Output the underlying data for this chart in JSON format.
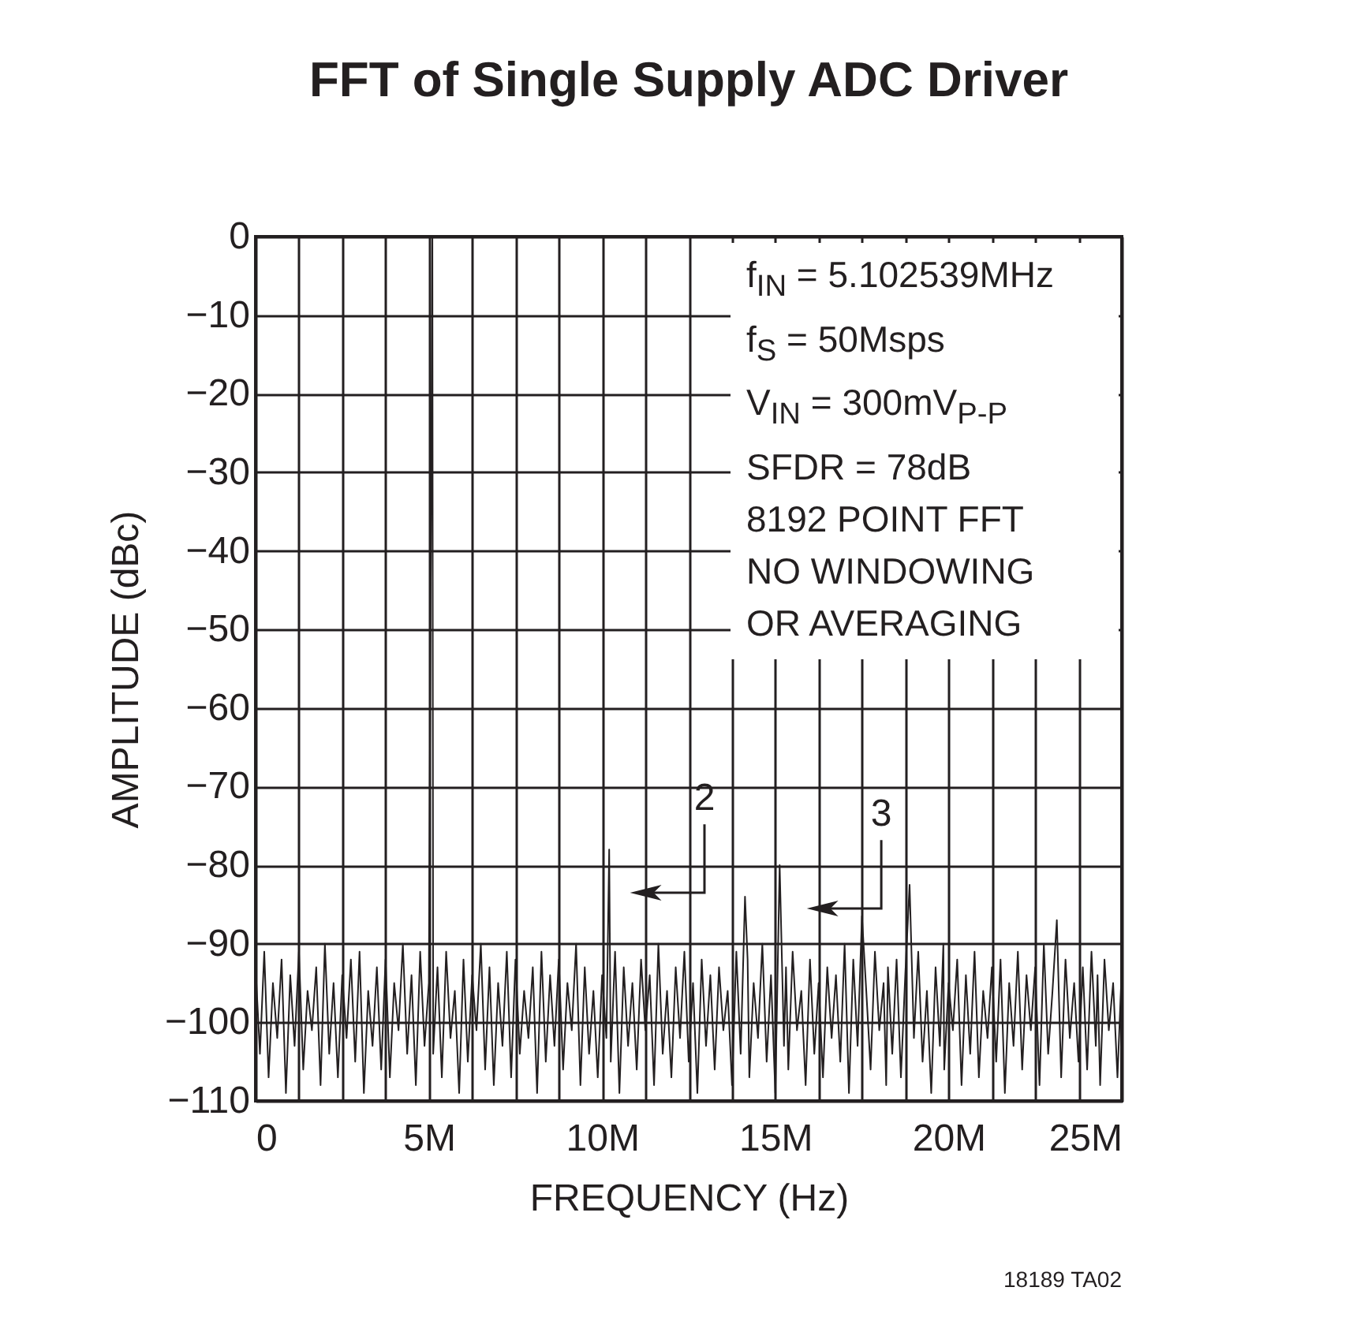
{
  "chart_data": {
    "type": "line",
    "title": "FFT of Single Supply ADC Driver",
    "xlabel": "FREQUENCY (Hz)",
    "ylabel": "AMPLITUDE (dBc)",
    "xlim": [
      0,
      25
    ],
    "ylim": [
      -110,
      0
    ],
    "xticks": [
      {
        "value": 0,
        "label": "0"
      },
      {
        "value": 1.25,
        "label": null
      },
      {
        "value": 2.5,
        "label": null
      },
      {
        "value": 3.75,
        "label": null
      },
      {
        "value": 5,
        "label": "5M"
      },
      {
        "value": 6.25,
        "label": null
      },
      {
        "value": 7.5,
        "label": null
      },
      {
        "value": 8.75,
        "label": null
      },
      {
        "value": 10,
        "label": "10M"
      },
      {
        "value": 11.25,
        "label": null
      },
      {
        "value": 12.5,
        "label": null
      },
      {
        "value": 13.75,
        "label": null
      },
      {
        "value": 15,
        "label": "15M"
      },
      {
        "value": 16.25,
        "label": null
      },
      {
        "value": 17.5,
        "label": null
      },
      {
        "value": 18.75,
        "label": null
      },
      {
        "value": 20,
        "label": "20M"
      },
      {
        "value": 21.25,
        "label": null
      },
      {
        "value": 22.5,
        "label": null
      },
      {
        "value": 23.75,
        "label": null
      },
      {
        "value": 25,
        "label": "25M"
      }
    ],
    "yticks": [
      0,
      {
        "value": -10,
        "label": "−10"
      },
      {
        "value": -20,
        "label": "−20"
      },
      {
        "value": -30,
        "label": "−30"
      },
      {
        "value": -40,
        "label": "−40"
      },
      {
        "value": -50,
        "label": "−50"
      },
      {
        "value": -60,
        "label": "−60"
      },
      {
        "value": -70,
        "label": "−70"
      },
      {
        "value": -80,
        "label": "−80"
      },
      {
        "value": -90,
        "label": "−90"
      },
      {
        "value": -100,
        "label": "−100"
      },
      {
        "value": -110,
        "label": "−110"
      }
    ],
    "grid": true,
    "line_style": "solid",
    "series": [
      {
        "color": "#231f20",
        "x": [
          0,
          0.125,
          0.25,
          0.375,
          0.5,
          0.625,
          0.75,
          0.875,
          1,
          1.125,
          1.25,
          1.375,
          1.5,
          1.625,
          1.75,
          1.875,
          2,
          2.125,
          2.25,
          2.375,
          2.5,
          2.625,
          2.75,
          2.875,
          3,
          3.125,
          3.25,
          3.375,
          3.5,
          3.625,
          3.75,
          3.875,
          4,
          4.125,
          4.25,
          4.375,
          4.5,
          4.625,
          4.75,
          4.875,
          5,
          5.102,
          5.125,
          5.25,
          5.375,
          5.5,
          5.625,
          5.75,
          5.875,
          6,
          6.125,
          6.25,
          6.375,
          6.5,
          6.625,
          6.75,
          6.875,
          7,
          7.125,
          7.25,
          7.375,
          7.5,
          7.625,
          7.75,
          7.875,
          8,
          8.125,
          8.25,
          8.375,
          8.5,
          8.625,
          8.75,
          8.875,
          9,
          9.125,
          9.25,
          9.375,
          9.5,
          9.625,
          9.75,
          9.875,
          10,
          10.125,
          10.205,
          10.25,
          10.375,
          10.5,
          10.625,
          10.75,
          10.875,
          11,
          11.125,
          11.25,
          11.375,
          11.5,
          11.625,
          11.75,
          11.875,
          12,
          12.125,
          12.25,
          12.375,
          12.5,
          12.625,
          12.75,
          12.875,
          13,
          13.125,
          13.25,
          13.375,
          13.5,
          13.625,
          13.75,
          13.875,
          14,
          14.125,
          14.2,
          14.25,
          14.375,
          14.5,
          14.625,
          14.75,
          14.875,
          15,
          15.125,
          15.25,
          15.308,
          15.375,
          15.5,
          15.625,
          15.75,
          15.875,
          16,
          16.125,
          16.25,
          16.375,
          16.5,
          16.625,
          16.75,
          16.875,
          17,
          17.125,
          17.25,
          17.375,
          17.5,
          17.625,
          17.75,
          17.875,
          18,
          18.125,
          18.2,
          18.25,
          18.375,
          18.5,
          18.625,
          18.75,
          18.875,
          19,
          19.125,
          19.25,
          19.375,
          19.5,
          19.625,
          19.75,
          19.85,
          19.875,
          20,
          20.125,
          20.25,
          20.375,
          20.5,
          20.625,
          20.75,
          20.875,
          21,
          21.125,
          21.25,
          21.375,
          21.5,
          21.625,
          21.75,
          21.875,
          22,
          22.125,
          22.25,
          22.375,
          22.5,
          22.625,
          22.75,
          22.875,
          23,
          23.125,
          23.25,
          23.375,
          23.5,
          23.625,
          23.75,
          23.875,
          24,
          24.125,
          24.25,
          24.3,
          24.375,
          24.5,
          24.625,
          24.75,
          24.875,
          25
        ],
        "values": [
          -93,
          -104,
          -91,
          -107,
          -95,
          -102,
          -92,
          -109,
          -94,
          -103,
          -91,
          -106,
          -96,
          -101,
          -93,
          -108,
          -90,
          -104,
          -95,
          -107,
          -94,
          -102,
          -92,
          -105,
          -91,
          -109,
          -96,
          -103,
          -93,
          -106,
          -92,
          -107,
          -95,
          -101,
          -90,
          -104,
          -94,
          -108,
          -91,
          -103,
          -95,
          0,
          -104,
          -93,
          -107,
          -91,
          -102,
          -96,
          -109,
          -92,
          -105,
          -94,
          -101,
          -90,
          -106,
          -93,
          -108,
          -95,
          -103,
          -91,
          -107,
          -92,
          -104,
          -96,
          -102,
          -93,
          -109,
          -91,
          -105,
          -94,
          -103,
          -92,
          -106,
          -95,
          -101,
          -90,
          -108,
          -93,
          -104,
          -96,
          -107,
          -94,
          -102,
          -78,
          -105,
          -91,
          -109,
          -93,
          -103,
          -95,
          -106,
          -92,
          -101,
          -94,
          -108,
          -90,
          -104,
          -96,
          -107,
          -93,
          -102,
          -91,
          -105,
          -95,
          -109,
          -92,
          -103,
          -94,
          -106,
          -93,
          -101,
          -96,
          -108,
          -91,
          -104,
          -84,
          -92,
          -107,
          -95,
          -102,
          -90,
          -105,
          -94,
          -109,
          -80,
          -103,
          -93,
          -106,
          -91,
          -101,
          -96,
          -108,
          -92,
          -104,
          -95,
          -107,
          -93,
          -102,
          -94,
          -105,
          -90,
          -109,
          -92,
          -103,
          -86.5,
          -96,
          -106,
          -91,
          -101,
          -95,
          -108,
          -93,
          -104,
          -92,
          -107,
          -94,
          -82.5,
          -102,
          -91,
          -105,
          -96,
          -109,
          -93,
          -103,
          -90,
          -106,
          -95,
          -101,
          -92,
          -108,
          -94,
          -104,
          -91,
          -107,
          -96,
          -102,
          -93,
          -105,
          -92,
          -109,
          -95,
          -103,
          -91,
          -106,
          -94,
          -101,
          -93,
          -108,
          -90,
          -104,
          -96,
          -87,
          -107,
          -92,
          -102,
          -95,
          -105,
          -93,
          -106,
          -91,
          -103,
          -94,
          -108,
          -92,
          -101,
          -95,
          -107,
          -93
        ]
      }
    ],
    "annotations": [
      "f$_{IN}$ = 5.102539MHz",
      "f$_{S}$ = 50Msps",
      "V$_{IN}$ = 300mV$_{P-P}$",
      "SFDR = 78dB",
      "8192 POINT FFT",
      "NO WINDOWING",
      "OR AVERAGING",
      {
        "text": "2",
        "x": 10.205,
        "y": -78
      },
      {
        "text": "3",
        "x": 15.308,
        "y": -80
      },
      "18189 TA02"
    ]
  }
}
